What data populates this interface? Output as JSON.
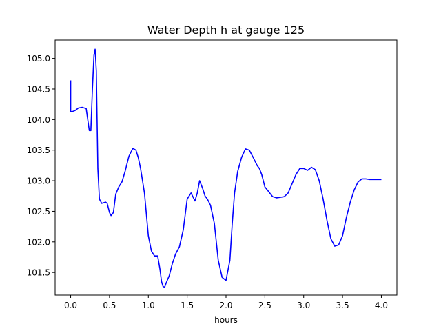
{
  "chart_data": {
    "type": "line",
    "title": "Water Depth h at gauge 125",
    "xlabel": "hours",
    "ylabel": "",
    "xlim": [
      -0.2,
      4.2
    ],
    "ylim": [
      101.13,
      105.3
    ],
    "xticks": [
      0.0,
      0.5,
      1.0,
      1.5,
      2.0,
      2.5,
      3.0,
      3.5,
      4.0
    ],
    "xtick_labels": [
      "0.0",
      "0.5",
      "1.0",
      "1.5",
      "2.0",
      "2.5",
      "3.0",
      "3.5",
      "4.0"
    ],
    "yticks": [
      101.5,
      102.0,
      102.5,
      103.0,
      103.5,
      104.0,
      104.5,
      105.0
    ],
    "ytick_labels": [
      "101.5",
      "102.0",
      "102.5",
      "103.0",
      "103.5",
      "104.0",
      "104.5",
      "105.0"
    ],
    "grid": false,
    "series": [
      {
        "color": "#0000ff",
        "x": [
          0.0,
          0.0,
          0.02,
          0.06,
          0.1,
          0.15,
          0.2,
          0.22,
          0.24,
          0.26,
          0.28,
          0.3,
          0.315,
          0.33,
          0.35,
          0.37,
          0.4,
          0.45,
          0.47,
          0.5,
          0.52,
          0.55,
          0.58,
          0.62,
          0.66,
          0.7,
          0.75,
          0.8,
          0.84,
          0.87,
          0.9,
          0.95,
          1.0,
          1.04,
          1.08,
          1.12,
          1.15,
          1.17,
          1.19,
          1.21,
          1.23,
          1.27,
          1.31,
          1.35,
          1.4,
          1.45,
          1.5,
          1.55,
          1.6,
          1.63,
          1.66,
          1.7,
          1.73,
          1.76,
          1.8,
          1.85,
          1.9,
          1.95,
          2.0,
          2.05,
          2.08,
          2.11,
          2.15,
          2.2,
          2.25,
          2.3,
          2.35,
          2.4,
          2.43,
          2.46,
          2.5,
          2.55,
          2.6,
          2.65,
          2.7,
          2.75,
          2.8,
          2.85,
          2.9,
          2.95,
          3.0,
          3.05,
          3.1,
          3.15,
          3.2,
          3.25,
          3.3,
          3.35,
          3.4,
          3.45,
          3.5,
          3.55,
          3.6,
          3.65,
          3.7,
          3.75,
          3.8,
          3.85,
          3.9,
          3.95,
          4.0
        ],
        "y": [
          104.64,
          104.13,
          104.13,
          104.15,
          104.19,
          104.2,
          104.18,
          104.0,
          103.82,
          103.82,
          104.5,
          105.05,
          105.15,
          104.8,
          103.2,
          102.7,
          102.63,
          102.65,
          102.63,
          102.48,
          102.43,
          102.48,
          102.78,
          102.9,
          102.98,
          103.15,
          103.4,
          103.53,
          103.5,
          103.38,
          103.2,
          102.8,
          102.1,
          101.85,
          101.77,
          101.77,
          101.55,
          101.35,
          101.27,
          101.26,
          101.33,
          101.45,
          101.65,
          101.8,
          101.92,
          102.2,
          102.7,
          102.8,
          102.67,
          102.8,
          103.0,
          102.87,
          102.75,
          102.7,
          102.6,
          102.3,
          101.7,
          101.42,
          101.37,
          101.7,
          102.3,
          102.8,
          103.15,
          103.38,
          103.52,
          103.5,
          103.38,
          103.25,
          103.2,
          103.1,
          102.9,
          102.82,
          102.74,
          102.72,
          102.73,
          102.74,
          102.8,
          102.95,
          103.1,
          103.2,
          103.2,
          103.17,
          103.22,
          103.18,
          103.0,
          102.7,
          102.35,
          102.05,
          101.93,
          101.95,
          102.1,
          102.4,
          102.65,
          102.85,
          102.98,
          103.03,
          103.03,
          103.02,
          103.02,
          103.02,
          103.02
        ]
      }
    ]
  }
}
